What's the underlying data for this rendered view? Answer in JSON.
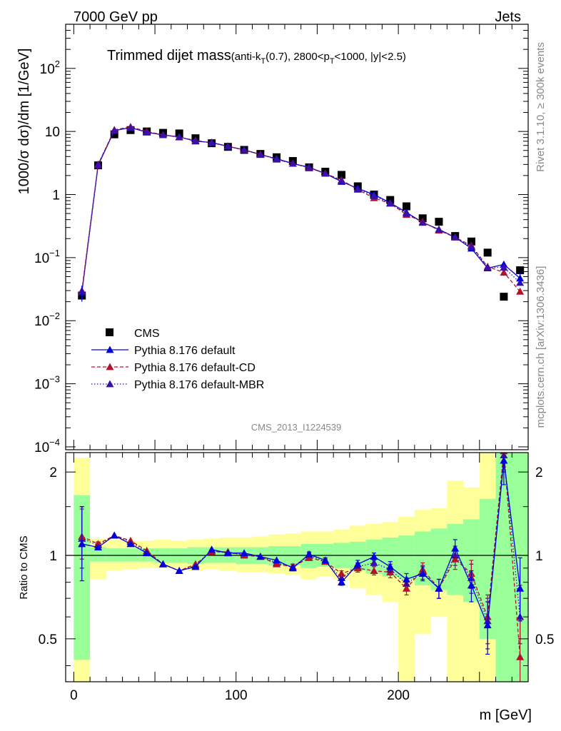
{
  "header": {
    "left": "7000 GeV pp",
    "right": "Jets"
  },
  "side_text": {
    "rivet": "Rivet 3.1.10, ≥ 300k events",
    "mcplots": "mcplots.cern.ch [arXiv:1306.3436]"
  },
  "analysis_id": "CMS_2013_I1224539",
  "colors": {
    "cms": "#000000",
    "default": "#0000dd",
    "cd": "#b3112e",
    "mbr": "#3b0fa8",
    "band_green": "#99ff99",
    "band_yellow": "#ffff99"
  },
  "chart_data": [
    {
      "type": "scatter",
      "panel": "main",
      "title": "Trimmed dijet mass",
      "title_detail": {
        "pre": "(anti-k",
        "sub1": "T",
        "mid": "(0.7), 2800<p",
        "sub2": "T",
        "post": "<1000, |y|<2.5)"
      },
      "ylabel": "1000/σ dσ)/dm [1/GeV]",
      "xlabel": "m [GeV]",
      "yscale": "log",
      "ylim": [
        9e-05,
        500
      ],
      "xlim": [
        -5,
        280
      ],
      "y_ticks": [
        {
          "value": 100,
          "base": "10",
          "exp": "2"
        },
        {
          "value": 10,
          "label": "10"
        },
        {
          "value": 1,
          "label": "1"
        },
        {
          "value": 0.1,
          "base": "10",
          "exp": "−1"
        },
        {
          "value": 0.01,
          "base": "10",
          "exp": "−2"
        },
        {
          "value": 0.001,
          "base": "10",
          "exp": "−3"
        },
        {
          "value": 0.0001,
          "base": "10",
          "exp": "−4"
        }
      ],
      "x": [
        5,
        15,
        25,
        35,
        45,
        55,
        65,
        75,
        85,
        95,
        105,
        115,
        125,
        135,
        145,
        155,
        165,
        175,
        185,
        195,
        205,
        215,
        225,
        235,
        245,
        255,
        265,
        275
      ],
      "series": [
        {
          "name": "CMS",
          "style": "square",
          "values": [
            0.025,
            2.9,
            9.0,
            10.5,
            10.0,
            9.5,
            9.3,
            7.8,
            6.5,
            5.7,
            5.1,
            4.4,
            3.9,
            3.4,
            2.7,
            2.3,
            2.05,
            1.35,
            1.0,
            0.82,
            0.65,
            0.42,
            0.37,
            0.22,
            0.18,
            0.12,
            0.024,
            0.063
          ]
        },
        {
          "name": "Pythia 8.176 default",
          "style": "solid",
          "values": [
            0.028,
            2.9,
            10.3,
            11.5,
            9.7,
            8.8,
            8.2,
            7.0,
            6.7,
            5.8,
            5.1,
            4.3,
            3.7,
            3.1,
            2.7,
            2.15,
            1.6,
            1.25,
            1.0,
            0.74,
            0.52,
            0.36,
            0.28,
            0.21,
            0.14,
            0.068,
            0.078,
            0.047
          ]
        },
        {
          "name": "Pythia 8.176 default-CD",
          "style": "dashed",
          "values": [
            0.03,
            3.0,
            10.6,
            11.8,
            10.0,
            8.8,
            8.1,
            7.2,
            6.6,
            5.8,
            5.1,
            4.35,
            3.6,
            3.1,
            2.65,
            2.15,
            1.7,
            1.2,
            0.88,
            0.72,
            0.48,
            0.37,
            0.27,
            0.21,
            0.155,
            0.072,
            0.058,
            0.029
          ]
        },
        {
          "name": "Pythia 8.176 default-MBR",
          "style": "dotted",
          "values": [
            0.029,
            3.0,
            10.4,
            11.6,
            9.8,
            8.8,
            8.15,
            7.1,
            6.6,
            5.8,
            5.1,
            4.3,
            3.65,
            3.1,
            2.7,
            2.15,
            1.65,
            1.22,
            0.95,
            0.73,
            0.5,
            0.36,
            0.28,
            0.21,
            0.15,
            0.07,
            0.07,
            0.04
          ]
        }
      ],
      "legend": [
        {
          "label": "CMS",
          "style": "square"
        },
        {
          "label": "Pythia 8.176 default",
          "style": "solid"
        },
        {
          "label": "Pythia 8.176 default-CD",
          "style": "dashed"
        },
        {
          "label": "Pythia 8.176 default-MBR",
          "style": "dotted"
        }
      ],
      "legend_position": "bottom-left"
    },
    {
      "type": "line",
      "panel": "ratio",
      "ylabel": "Ratio to CMS",
      "yscale": "log",
      "ylim": [
        0.35,
        2.35
      ],
      "y_ticks": [
        {
          "value": 2,
          "label": "2"
        },
        {
          "value": 1,
          "label": "1"
        },
        {
          "value": 0.5,
          "label": "0.5"
        }
      ],
      "x_ticks": [
        {
          "value": 0,
          "label": "0"
        },
        {
          "value": 100,
          "label": "100"
        },
        {
          "value": 200,
          "label": "200"
        }
      ],
      "reference_line": 1,
      "x": [
        5,
        15,
        25,
        35,
        45,
        55,
        65,
        75,
        85,
        95,
        105,
        115,
        125,
        135,
        145,
        155,
        165,
        175,
        185,
        195,
        205,
        215,
        225,
        235,
        245,
        255,
        265,
        275
      ],
      "bands": {
        "green_lo": [
          0.42,
          0.95,
          0.95,
          0.95,
          0.95,
          0.94,
          0.94,
          0.93,
          0.94,
          0.94,
          0.93,
          0.93,
          0.92,
          0.92,
          0.9,
          0.91,
          0.9,
          0.88,
          0.86,
          0.84,
          0.82,
          0.78,
          0.75,
          0.72,
          0.68,
          0.5,
          0.35,
          0.35
        ],
        "green_hi": [
          1.65,
          1.07,
          1.06,
          1.06,
          1.06,
          1.06,
          1.06,
          1.07,
          1.07,
          1.07,
          1.07,
          1.07,
          1.08,
          1.08,
          1.1,
          1.1,
          1.11,
          1.12,
          1.14,
          1.16,
          1.18,
          1.22,
          1.25,
          1.3,
          1.35,
          1.6,
          2.4,
          2.4
        ],
        "yellow_lo": [
          0.35,
          0.82,
          0.88,
          0.89,
          0.9,
          0.9,
          0.9,
          0.88,
          0.89,
          0.88,
          0.87,
          0.87,
          0.86,
          0.85,
          0.82,
          0.84,
          0.82,
          0.76,
          0.72,
          0.68,
          0.35,
          0.52,
          0.6,
          0.35,
          0.35,
          0.35,
          0.35,
          0.35
        ],
        "yellow_hi": [
          2.25,
          1.15,
          1.14,
          1.13,
          1.13,
          1.14,
          1.13,
          1.14,
          1.15,
          1.16,
          1.16,
          1.17,
          1.19,
          1.2,
          1.22,
          1.22,
          1.24,
          1.28,
          1.3,
          1.32,
          1.38,
          1.46,
          1.48,
          1.86,
          1.76,
          2.4,
          2.4,
          2.4
        ]
      },
      "series": [
        {
          "name": "Pythia 8.176 default",
          "style": "solid",
          "values": [
            1.1,
            1.07,
            1.18,
            1.1,
            1.02,
            0.93,
            0.88,
            0.91,
            1.05,
            1.02,
            1.02,
            0.99,
            0.96,
            0.9,
            1.01,
            0.96,
            0.8,
            0.93,
            0.99,
            0.91,
            0.82,
            0.86,
            0.76,
            1.06,
            0.78,
            0.56,
            2.2,
            0.76
          ],
          "err_lo": [
            0.29,
            0.02,
            0.01,
            0.01,
            0.01,
            0.01,
            0.01,
            0.01,
            0.01,
            0.01,
            0.01,
            0.01,
            0.01,
            0.02,
            0.02,
            0.02,
            0.02,
            0.03,
            0.03,
            0.04,
            0.04,
            0.05,
            0.06,
            0.08,
            0.1,
            0.12,
            0.4,
            0.18
          ],
          "err_hi": [
            0.4,
            0.02,
            0.01,
            0.01,
            0.01,
            0.01,
            0.01,
            0.01,
            0.01,
            0.01,
            0.01,
            0.01,
            0.01,
            0.02,
            0.02,
            0.02,
            0.02,
            0.03,
            0.03,
            0.04,
            0.04,
            0.05,
            0.06,
            0.08,
            0.1,
            0.12,
            0.4,
            0.22
          ]
        },
        {
          "name": "Pythia 8.176 default-CD",
          "style": "dashed",
          "values": [
            1.17,
            1.1,
            1.18,
            1.13,
            1.04,
            0.93,
            0.88,
            0.93,
            1.03,
            1.03,
            1.0,
            0.99,
            0.93,
            0.91,
            0.98,
            0.95,
            0.86,
            0.9,
            0.88,
            0.87,
            0.76,
            0.89,
            0.76,
            0.97,
            0.86,
            0.6,
            2.38,
            0.43
          ],
          "err_lo": [
            0.2,
            0.02,
            0.01,
            0.01,
            0.01,
            0.01,
            0.01,
            0.01,
            0.01,
            0.01,
            0.01,
            0.01,
            0.01,
            0.02,
            0.02,
            0.02,
            0.02,
            0.03,
            0.03,
            0.04,
            0.04,
            0.05,
            0.06,
            0.08,
            0.1,
            0.12,
            0.3,
            0.1
          ],
          "err_hi": [
            0.3,
            0.02,
            0.01,
            0.01,
            0.01,
            0.01,
            0.01,
            0.01,
            0.01,
            0.01,
            0.01,
            0.01,
            0.01,
            0.02,
            0.02,
            0.02,
            0.02,
            0.03,
            0.03,
            0.04,
            0.04,
            0.05,
            0.06,
            0.08,
            0.1,
            0.12,
            0.3,
            0.15
          ]
        },
        {
          "name": "Pythia 8.176 default-MBR",
          "style": "dotted",
          "values": [
            1.15,
            1.09,
            1.18,
            1.12,
            1.03,
            0.93,
            0.88,
            0.92,
            1.04,
            1.02,
            1.01,
            0.99,
            0.94,
            0.91,
            1.0,
            0.95,
            0.83,
            0.91,
            0.94,
            0.89,
            0.79,
            0.87,
            0.76,
            1.0,
            0.83,
            0.58,
            2.3,
            0.6
          ],
          "err_lo": [
            0.25,
            0.02,
            0.01,
            0.01,
            0.01,
            0.01,
            0.01,
            0.01,
            0.01,
            0.01,
            0.01,
            0.01,
            0.01,
            0.02,
            0.02,
            0.02,
            0.02,
            0.03,
            0.03,
            0.04,
            0.04,
            0.05,
            0.06,
            0.08,
            0.1,
            0.12,
            0.3,
            0.12
          ],
          "err_hi": [
            0.35,
            0.02,
            0.01,
            0.01,
            0.01,
            0.01,
            0.01,
            0.01,
            0.01,
            0.01,
            0.01,
            0.01,
            0.01,
            0.02,
            0.02,
            0.02,
            0.02,
            0.03,
            0.03,
            0.04,
            0.04,
            0.05,
            0.06,
            0.08,
            0.1,
            0.12,
            0.3,
            0.18
          ]
        }
      ]
    }
  ]
}
